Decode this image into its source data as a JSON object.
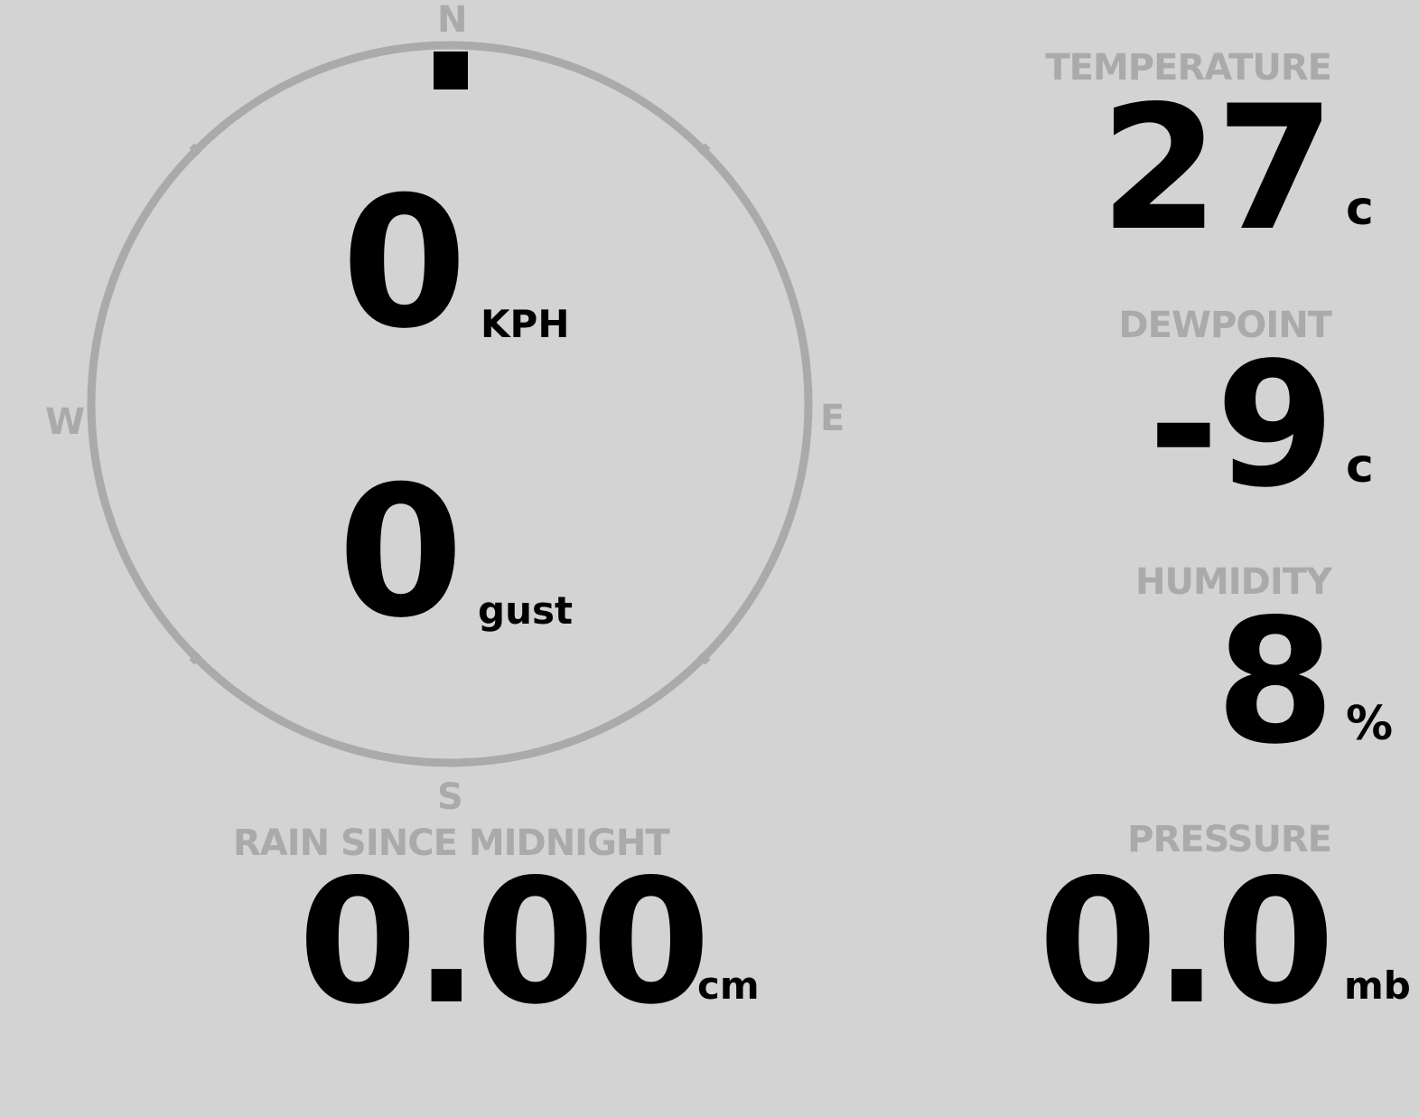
{
  "compass": {
    "north": "N",
    "south": "S",
    "east": "E",
    "west": "W",
    "direction_degrees": 0,
    "ring_color": "#aaaaaa",
    "pointer_color": "#000000"
  },
  "wind": {
    "speed": "0",
    "speed_unit": "KPH",
    "gust": "0",
    "gust_unit": "gust"
  },
  "rain": {
    "label": "RAIN SINCE MIDNIGHT",
    "value": "0.00",
    "unit": "cm"
  },
  "temperature": {
    "label": "TEMPERATURE",
    "value": "27",
    "unit": "c"
  },
  "dewpoint": {
    "label": "DEWPOINT",
    "value": "-9",
    "unit": "c"
  },
  "humidity": {
    "label": "HUMIDITY",
    "value": "8",
    "unit": "%"
  },
  "pressure": {
    "label": "PRESSURE",
    "value": "0.0",
    "unit": "mb"
  },
  "colors": {
    "background": "#d3d3d3",
    "label": "#aaaaaa",
    "value": "#000000"
  }
}
